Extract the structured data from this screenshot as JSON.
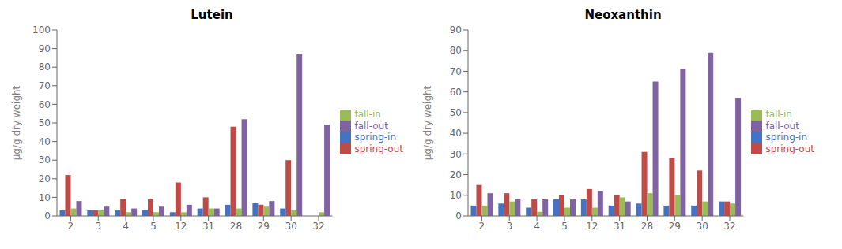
{
  "chart_data": [
    {
      "type": "bar",
      "title": "Lutein",
      "categories": [
        "2",
        "3",
        "4",
        "5",
        "12",
        "31",
        "28",
        "29",
        "30",
        "32"
      ],
      "ylabel": "μg/g dry weight",
      "ylim": [
        0,
        100
      ],
      "yticks": [
        0,
        10,
        20,
        30,
        40,
        50,
        60,
        70,
        80,
        90,
        100
      ],
      "grid": false,
      "legend": "right",
      "series": [
        {
          "name": "spring-in",
          "color": "#4472C4",
          "values": [
            3,
            3,
            3,
            3,
            2,
            4,
            6,
            7,
            4,
            0
          ]
        },
        {
          "name": "spring-out",
          "color": "#BE4B48",
          "values": [
            22,
            3,
            9,
            9,
            18,
            10,
            48,
            6,
            30,
            0
          ]
        },
        {
          "name": "fall-in",
          "color": "#9BBB59",
          "values": [
            4,
            3,
            2,
            2,
            2,
            4,
            4,
            5,
            3,
            2
          ]
        },
        {
          "name": "fall-out",
          "color": "#8064A2",
          "values": [
            8,
            5,
            4,
            5,
            6,
            4,
            52,
            8,
            87,
            49
          ]
        }
      ]
    },
    {
      "type": "bar",
      "title": "Neoxanthin",
      "categories": [
        "2",
        "3",
        "4",
        "5",
        "12",
        "31",
        "28",
        "29",
        "30",
        "32"
      ],
      "ylabel": "μg/g dry weight",
      "ylim": [
        0,
        90
      ],
      "yticks": [
        0,
        10,
        20,
        30,
        40,
        50,
        60,
        70,
        80,
        90
      ],
      "grid": false,
      "legend": "right",
      "series": [
        {
          "name": "spring-in",
          "color": "#4472C4",
          "values": [
            5,
            6,
            4,
            8,
            8,
            5,
            6,
            5,
            5,
            7
          ]
        },
        {
          "name": "spring-out",
          "color": "#BE4B48",
          "values": [
            15,
            11,
            8,
            10,
            13,
            10,
            31,
            28,
            22,
            7
          ]
        },
        {
          "name": "fall-in",
          "color": "#9BBB59",
          "values": [
            5,
            7,
            2,
            4,
            4,
            9,
            11,
            10,
            7,
            6
          ]
        },
        {
          "name": "fall-out",
          "color": "#8064A2",
          "values": [
            11,
            8,
            8,
            8,
            12,
            7,
            65,
            71,
            79,
            57
          ]
        }
      ]
    }
  ]
}
